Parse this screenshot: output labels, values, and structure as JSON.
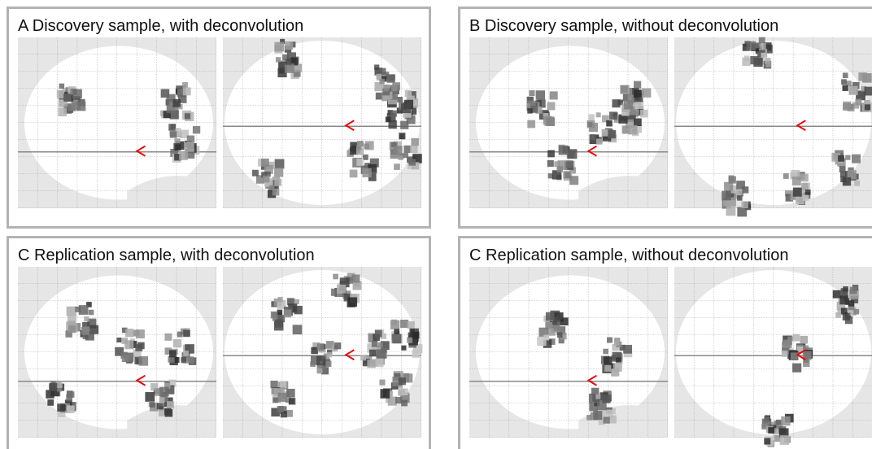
{
  "panels": [
    {
      "title": "A  Discovery sample, with deconvolution"
    },
    {
      "title": "B  Discovery sample, without deconvolution"
    },
    {
      "title": "C  Replication sample, with deconvolution"
    },
    {
      "title": "C  Replication sample, without deconvolution"
    }
  ]
}
